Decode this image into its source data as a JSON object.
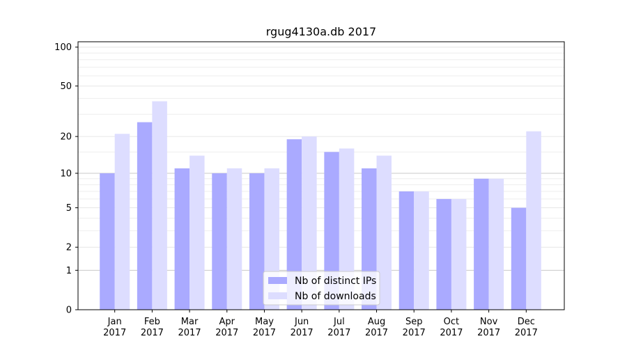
{
  "chart_data": {
    "type": "bar",
    "title": "rgug4130a.db 2017",
    "xlabel": "",
    "ylabel": "",
    "y_scale": "log(1+y)",
    "ylim": [
      0,
      110
    ],
    "y_ticks": [
      {
        "value": 0,
        "label": "0"
      },
      {
        "value": 1,
        "label": "1"
      },
      {
        "value": 2,
        "label": "2"
      },
      {
        "value": 5,
        "label": "5"
      },
      {
        "value": 10,
        "label": "10"
      },
      {
        "value": 20,
        "label": "20"
      },
      {
        "value": 50,
        "label": "50"
      },
      {
        "value": 100,
        "label": "100"
      }
    ],
    "categories": [
      {
        "month": "Jan",
        "year": "2017"
      },
      {
        "month": "Feb",
        "year": "2017"
      },
      {
        "month": "Mar",
        "year": "2017"
      },
      {
        "month": "Apr",
        "year": "2017"
      },
      {
        "month": "May",
        "year": "2017"
      },
      {
        "month": "Jun",
        "year": "2017"
      },
      {
        "month": "Jul",
        "year": "2017"
      },
      {
        "month": "Aug",
        "year": "2017"
      },
      {
        "month": "Sep",
        "year": "2017"
      },
      {
        "month": "Oct",
        "year": "2017"
      },
      {
        "month": "Nov",
        "year": "2017"
      },
      {
        "month": "Dec",
        "year": "2017"
      }
    ],
    "series": [
      {
        "name": "Nb of distinct IPs",
        "color": "#aaaaff",
        "values": [
          10,
          26,
          11,
          10,
          10,
          19,
          15,
          11,
          7,
          6,
          9,
          5
        ]
      },
      {
        "name": "Nb of downloads",
        "color": "#ddddff",
        "values": [
          21,
          38,
          14,
          11,
          11,
          20,
          16,
          14,
          7,
          6,
          9,
          22
        ]
      }
    ],
    "grid": true,
    "legend_position": "bottom-center"
  }
}
